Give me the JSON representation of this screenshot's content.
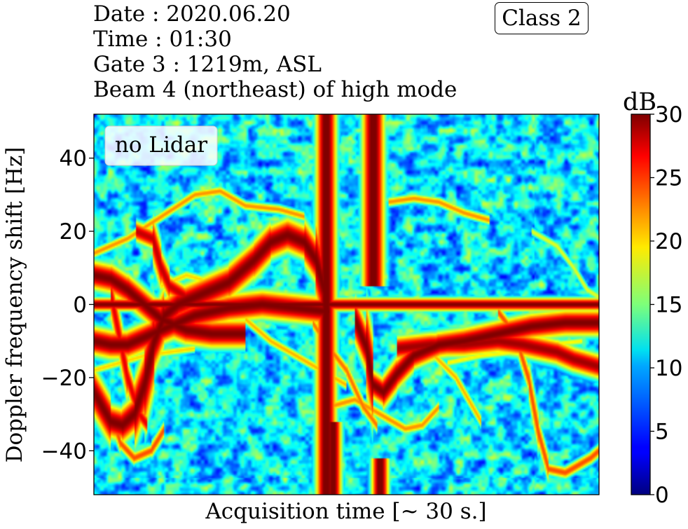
{
  "header": {
    "date": "Date : 2020.06.20",
    "time": "Time : 01:30",
    "gate": "Gate 3 : 1219m, ASL",
    "beam": "Beam 4 (northeast) of high mode",
    "class_badge": "Class 2"
  },
  "chart_data": {
    "type": "heatmap",
    "title": "",
    "xlabel": "Acquisition time [~ 30 s.]",
    "ylabel": "Doppler frequency shift [Hz]",
    "annotation": "no Lidar",
    "xlim": [
      0,
      30
    ],
    "ylim": [
      -52,
      52
    ],
    "yticks": [
      -40,
      -20,
      0,
      20,
      40
    ],
    "ytick_labels": [
      "−40",
      "−20",
      "0",
      "20",
      "40"
    ],
    "xticks": [],
    "grid": false,
    "colormap": "jet",
    "colorbar": {
      "label": "dB",
      "range": [
        0,
        30
      ],
      "ticks": [
        0,
        5,
        10,
        15,
        20,
        25,
        30
      ],
      "tick_labels": [
        "0",
        "5",
        "10",
        "15",
        "20",
        "25",
        "30"
      ]
    },
    "features": {
      "zero_line_hz": 0,
      "vertical_spikes": [
        {
          "t": 13.8,
          "width_s": 1.2,
          "from_hz": -52,
          "to_hz": 52
        },
        {
          "t": 16.6,
          "width_s": 1.3,
          "from_hz": 5,
          "to_hz": 52
        },
        {
          "t": 14.2,
          "width_s": 1.0,
          "from_hz": -52,
          "to_hz": -32
        },
        {
          "t": 17.0,
          "width_s": 1.0,
          "from_hz": -52,
          "to_hz": -42
        }
      ],
      "traces": [
        {
          "points": [
            [
              0,
              -24
            ],
            [
              0.5,
              -28
            ],
            [
              1,
              -32
            ],
            [
              1.7,
              -33
            ],
            [
              2.4,
              -30
            ],
            [
              3,
              -22
            ],
            [
              3.6,
              -10
            ],
            [
              4.2,
              -3
            ],
            [
              5,
              0
            ],
            [
              6.5,
              3
            ],
            [
              8,
              6
            ],
            [
              9.5,
              12
            ],
            [
              10.5,
              17
            ],
            [
              11.5,
              19
            ],
            [
              12.5,
              17
            ],
            [
              13.2,
              12
            ],
            [
              13.8,
              2
            ]
          ],
          "db": 30,
          "width_hz": 4
        },
        {
          "points": [
            [
              0,
              -10
            ],
            [
              1,
              -11
            ],
            [
              2,
              -11
            ],
            [
              3,
              -9
            ],
            [
              4.5,
              -6
            ],
            [
              6,
              -3
            ],
            [
              8,
              -1
            ],
            [
              10,
              0
            ],
            [
              12,
              -1
            ],
            [
              14,
              -2
            ]
          ],
          "db": 30,
          "width_hz": 3.5
        },
        {
          "points": [
            [
              0,
              8
            ],
            [
              1,
              7
            ],
            [
              2,
              4
            ],
            [
              3,
              0
            ],
            [
              4,
              -4
            ],
            [
              5.5,
              -7
            ],
            [
              7,
              -8
            ],
            [
              9,
              -8
            ]
          ],
          "db": 30,
          "width_hz": 3.5
        },
        {
          "points": [
            [
              15.5,
              -4
            ],
            [
              16.2,
              -12
            ],
            [
              16.6,
              -22
            ],
            [
              17.2,
              -24
            ],
            [
              18,
              -19
            ],
            [
              19,
              -14
            ],
            [
              20.5,
              -11
            ],
            [
              22,
              -10
            ],
            [
              24,
              -8
            ],
            [
              26,
              -6
            ],
            [
              28,
              -5
            ],
            [
              30,
              -5
            ]
          ],
          "db": 30,
          "width_hz": 3.2
        },
        {
          "points": [
            [
              18,
              -12
            ],
            [
              20,
              -11
            ],
            [
              22,
              -11
            ],
            [
              24,
              -10
            ],
            [
              25.5,
              -11
            ],
            [
              26.5,
              -12
            ],
            [
              27.5,
              -13
            ],
            [
              28.5,
              -15
            ],
            [
              30,
              -17
            ]
          ],
          "db": 29,
          "width_hz": 3
        },
        {
          "points": [
            [
              2.5,
              20
            ],
            [
              3.5,
              18
            ],
            [
              4,
              10
            ],
            [
              4.5,
              5
            ],
            [
              5.5,
              2
            ]
          ],
          "db": 28,
          "width_hz": 2.5
        },
        {
          "points": [
            [
              1,
              3
            ],
            [
              2,
              -20
            ],
            [
              2.7,
              -30
            ],
            [
              3.2,
              -33
            ]
          ],
          "db": 27,
          "width_hz": 2
        },
        {
          "points": [
            [
              0,
              14
            ],
            [
              2,
              18
            ],
            [
              4,
              24
            ],
            [
              6,
              30
            ],
            [
              7.5,
              31
            ],
            [
              9,
              27
            ],
            [
              11,
              26
            ],
            [
              12.5,
              24
            ]
          ],
          "db": 22,
          "width_hz": 1.2
        },
        {
          "points": [
            [
              0,
              -22
            ],
            [
              1,
              -30
            ],
            [
              1.6,
              -38
            ],
            [
              2.4,
              -42
            ],
            [
              3.4,
              -40
            ],
            [
              4.2,
              -34
            ]
          ],
          "db": 24,
          "width_hz": 1.5
        },
        {
          "points": [
            [
              17.5,
              28
            ],
            [
              19,
              29
            ],
            [
              20.5,
              28
            ],
            [
              22,
              25
            ],
            [
              23.5,
              23
            ]
          ],
          "db": 22,
          "width_hz": 1.2
        },
        {
          "points": [
            [
              14,
              -28
            ],
            [
              15.5,
              -26
            ],
            [
              17,
              -30
            ],
            [
              18.5,
              -34
            ],
            [
              19.5,
              -33
            ],
            [
              20.5,
              -28
            ]
          ],
          "db": 22,
          "width_hz": 1.3
        },
        {
          "points": [
            [
              13,
              -5
            ],
            [
              14,
              -12
            ],
            [
              15,
              -18
            ],
            [
              16,
              -28
            ],
            [
              16.8,
              -33
            ]
          ],
          "db": 23,
          "width_hz": 1.4
        },
        {
          "points": [
            [
              24,
              -2
            ],
            [
              25,
              -8
            ],
            [
              25.8,
              -20
            ],
            [
              26.4,
              -35
            ],
            [
              27,
              -45
            ],
            [
              28,
              -46
            ],
            [
              29.5,
              -42
            ],
            [
              30,
              -40
            ]
          ],
          "db": 24,
          "width_hz": 1.5
        },
        {
          "points": [
            [
              9,
              -4
            ],
            [
              10.5,
              -10
            ],
            [
              12,
              -14
            ],
            [
              13.5,
              -18
            ],
            [
              15,
              -22
            ]
          ],
          "db": 21,
          "width_hz": 1.2
        },
        {
          "points": [
            [
              20,
              -13
            ],
            [
              21.5,
              -20
            ],
            [
              22.5,
              -28
            ],
            [
              23,
              -32
            ]
          ],
          "db": 21,
          "width_hz": 1.2
        },
        {
          "points": [
            [
              4,
              5
            ],
            [
              5.5,
              8
            ],
            [
              7,
              6
            ],
            [
              8.5,
              10
            ],
            [
              10,
              12
            ],
            [
              11,
              15
            ]
          ],
          "db": 20,
          "width_hz": 1.2
        },
        {
          "points": [
            [
              0,
              -18
            ],
            [
              1.5,
              -16
            ],
            [
              3,
              -14
            ],
            [
              4.5,
              -13
            ],
            [
              6,
              -12
            ]
          ],
          "db": 20,
          "width_hz": 1.1
        },
        {
          "points": [
            [
              21,
              -16
            ],
            [
              23,
              -14
            ],
            [
              25,
              -13
            ],
            [
              27,
              -11
            ],
            [
              29,
              -10
            ]
          ],
          "db": 19,
          "width_hz": 1.0
        },
        {
          "points": [
            [
              26,
              20
            ],
            [
              27.5,
              16
            ],
            [
              28.5,
              10
            ],
            [
              29.3,
              4
            ],
            [
              30,
              2
            ]
          ],
          "db": 18,
          "width_hz": 1.0
        }
      ]
    }
  }
}
